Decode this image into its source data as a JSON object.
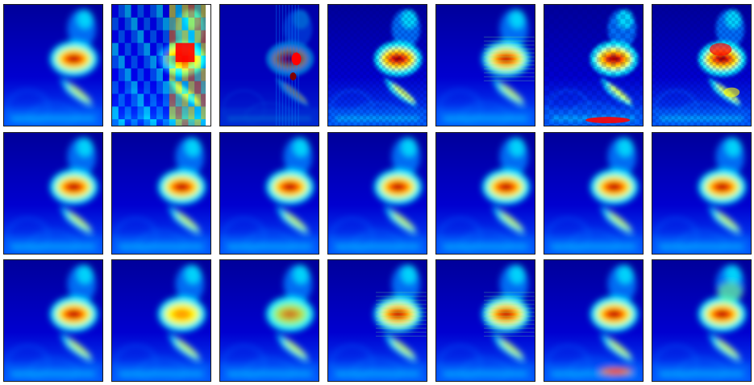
{
  "figure": {
    "rows": 3,
    "columns": 7,
    "colormap": [
      "#00007f",
      "#0000ff",
      "#007fff",
      "#00ffff",
      "#7fff7f",
      "#ffff00",
      "#ff7f00",
      "#ff0000",
      "#7f0000"
    ],
    "background_color": "#ffffff",
    "panel_style": {
      "row1": [
        "smooth-reference",
        "coarse-blocky",
        "sparse-streaked",
        "noisy-grid",
        "smooth-banded",
        "checkerboard-noisy",
        "speckled-blotchy"
      ],
      "row2": [
        "smooth",
        "smooth",
        "smooth",
        "smooth",
        "smooth",
        "smooth",
        "smooth"
      ],
      "row3": [
        "smooth-reference",
        "smooth-faint",
        "smooth-weak-hotspot",
        "smooth-streaked",
        "smooth-banded",
        "smooth-bottom-hotspot",
        "smooth-bright"
      ]
    }
  }
}
